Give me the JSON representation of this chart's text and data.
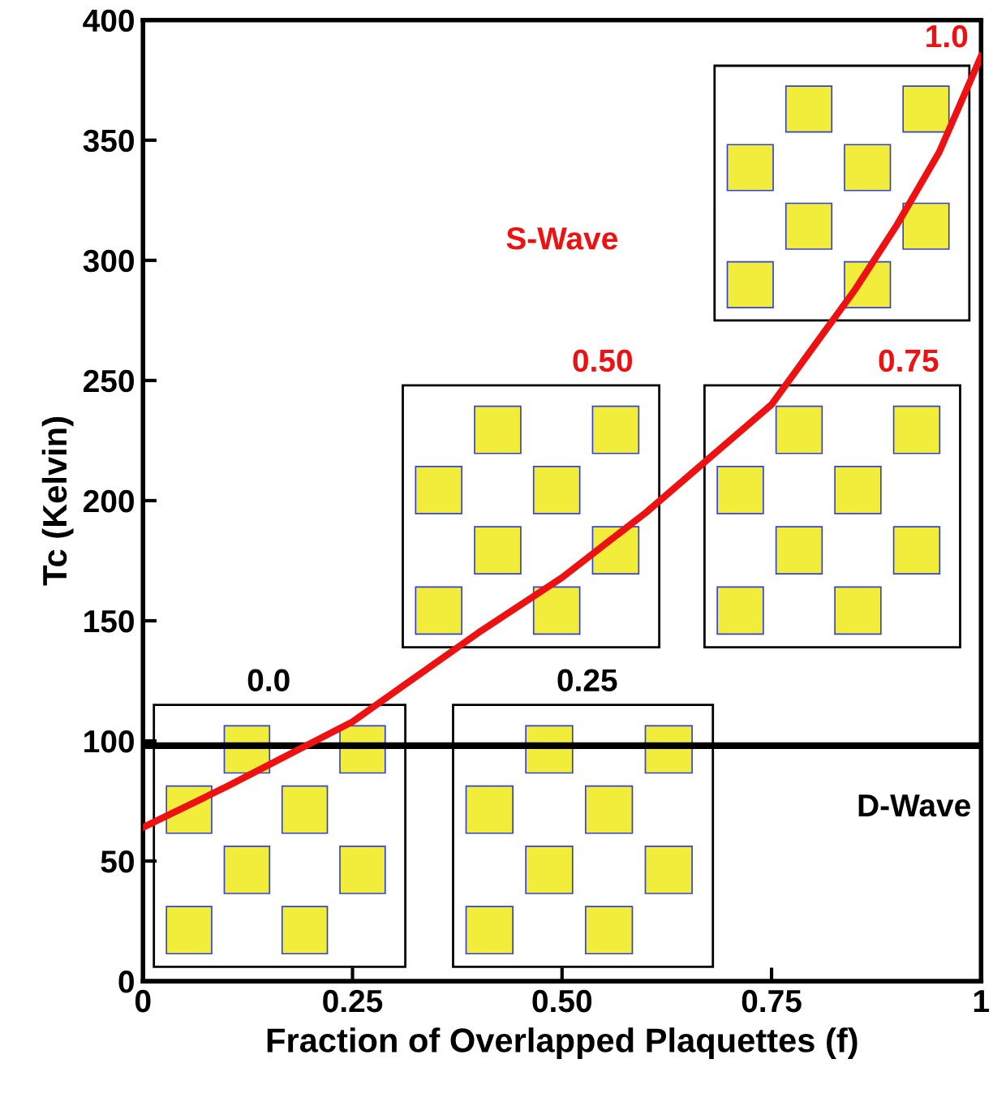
{
  "chart_data": {
    "type": "line",
    "xlabel": "Fraction of Overlapped Plaquettes (f)",
    "ylabel": "Tc (Kelvin)",
    "xlim": [
      0,
      1
    ],
    "ylim": [
      0,
      400
    ],
    "xticks": [
      0,
      {
        "value": 0.25,
        "label": "0.25"
      },
      {
        "value": 0.5,
        "label": "0.50"
      },
      {
        "value": 0.75,
        "label": "0.75"
      },
      1
    ],
    "yticks": [
      0,
      50,
      100,
      150,
      200,
      250,
      300,
      350,
      400
    ],
    "grid": false,
    "legend": false,
    "marker": "none",
    "line_style": "solid",
    "series": [
      {
        "color": "#ee1111",
        "x": [
          0,
          0.1,
          0.25,
          0.4,
          0.5,
          0.6,
          0.75,
          0.85,
          0.9,
          0.95,
          1
        ],
        "values": [
          64,
          81,
          108,
          145,
          168,
          195,
          240,
          288,
          315,
          345,
          385
        ]
      }
    ],
    "ref_lines": [
      {
        "axis": "y",
        "value": 98,
        "color": "#000000",
        "line_style": "solid"
      }
    ],
    "annotations": [
      "0.0",
      "0.25",
      "0.50",
      "0.75",
      "1.0",
      "S-Wave",
      "D-Wave"
    ]
  }
}
